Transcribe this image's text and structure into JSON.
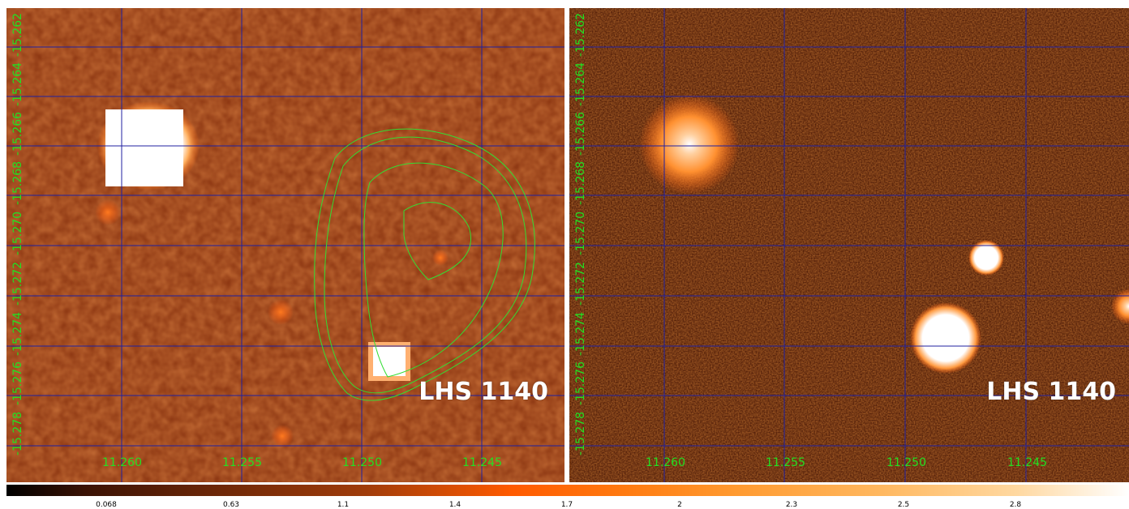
{
  "panels": [
    {
      "target": "LHS 1140",
      "ra_ticks": [
        "11.260",
        "11.255",
        "11.250",
        "11.245"
      ],
      "dec_ticks": [
        "-15.262",
        "-15.264",
        "-15.266",
        "-15.268",
        "-15.270",
        "-15.272",
        "-15.274",
        "-15.276",
        "-15.278"
      ]
    },
    {
      "target": "LHS 1140",
      "ra_ticks": [
        "11.260",
        "11.255",
        "11.250",
        "11.245"
      ],
      "dec_ticks": [
        "-15.262",
        "-15.264",
        "-15.266",
        "-15.268",
        "-15.270",
        "-15.272",
        "-15.274",
        "-15.276",
        "-15.278"
      ]
    }
  ],
  "colorbar": {
    "ticks": [
      "0.068",
      "0.63",
      "1.1",
      "1.4",
      "1.7",
      "2",
      "2.3",
      "2.5",
      "2.8"
    ]
  },
  "colors": {
    "grid": "#2020a0",
    "contour": "#33dd33",
    "labels": "#22e022"
  }
}
